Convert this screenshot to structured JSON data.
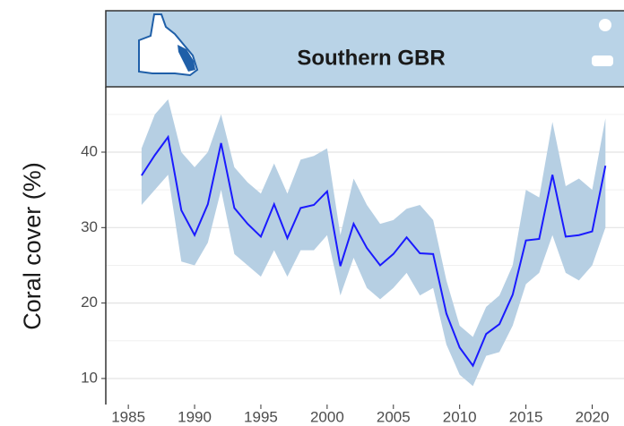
{
  "chart_data": {
    "type": "line",
    "title": "Southern GBR",
    "ylabel": "Coral cover (%)",
    "x": [
      1986,
      1987,
      1988,
      1989,
      1990,
      1991,
      1992,
      1993,
      1994,
      1995,
      1996,
      1997,
      1998,
      1999,
      2000,
      2001,
      2002,
      2003,
      2004,
      2005,
      2006,
      2007,
      2008,
      2009,
      2010,
      2011,
      2012,
      2013,
      2014,
      2015,
      2016,
      2017,
      2018,
      2019,
      2020,
      2021
    ],
    "values": [
      36.9,
      39.6,
      42.0,
      32.3,
      29.0,
      33.1,
      41.2,
      32.6,
      30.5,
      28.8,
      33.1,
      28.6,
      32.6,
      33.0,
      34.8,
      24.9,
      30.5,
      27.3,
      25.0,
      26.5,
      28.7,
      26.6,
      26.5,
      18.6,
      14.1,
      11.7,
      15.9,
      17.2,
      21.1,
      28.3,
      28.5,
      37.0,
      28.8,
      29.0,
      29.5,
      38.2
    ],
    "lower": [
      33,
      35,
      37,
      25.5,
      25,
      28,
      35,
      26.5,
      25,
      23.5,
      27,
      23.5,
      27,
      27,
      29,
      21,
      26,
      22,
      20.5,
      22,
      24,
      21,
      22,
      14.5,
      10.5,
      9,
      13,
      13.5,
      17,
      22.5,
      24,
      29,
      24,
      23,
      25,
      30
    ],
    "upper": [
      40.5,
      45,
      47,
      40,
      38,
      40,
      45,
      38,
      36,
      34.5,
      38.5,
      34.5,
      39,
      39.5,
      40.5,
      29,
      36.5,
      33,
      30.5,
      31,
      32.5,
      33,
      31,
      23,
      17,
      15.5,
      19.5,
      21,
      25,
      35,
      34,
      44,
      35.5,
      36.5,
      35,
      44.5
    ],
    "color": "#1a1aff",
    "band_color": "#b6cfe3",
    "header_color": "#b9d3e7",
    "xlim": [
      1983.3,
      2022.4
    ],
    "ylim": [
      6.55,
      48.66
    ],
    "xticks": [
      1985,
      1990,
      1995,
      2000,
      2005,
      2010,
      2015,
      2020
    ],
    "yticks": [
      10,
      20,
      30,
      40
    ],
    "grid": true
  }
}
